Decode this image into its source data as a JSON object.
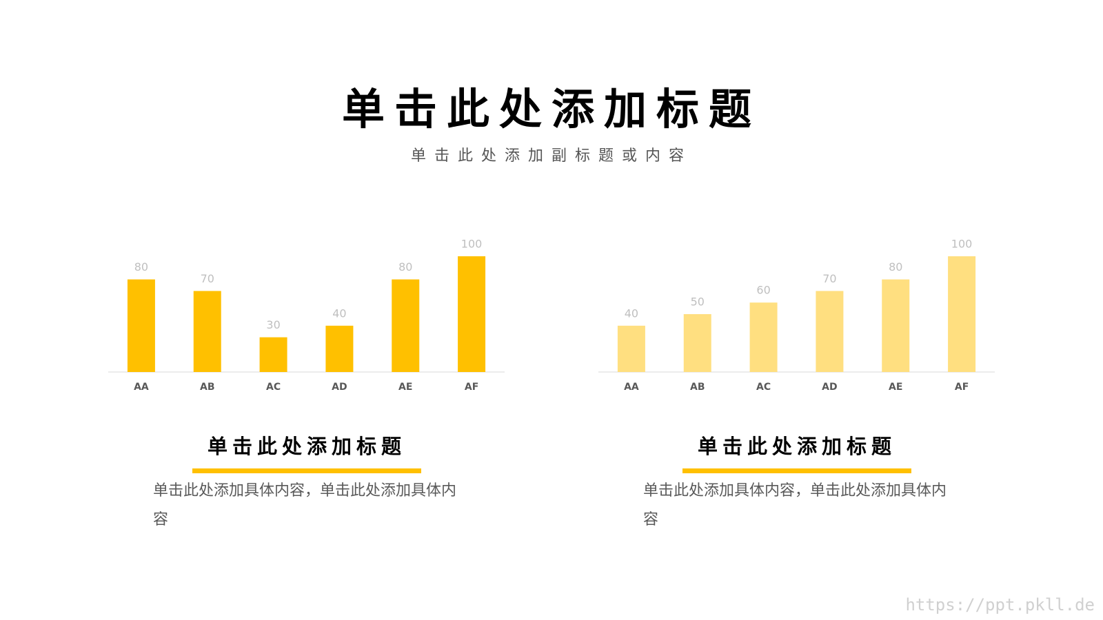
{
  "header": {
    "title": "单击此处添加标题",
    "subtitle": "单击此处添加副标题或内容"
  },
  "chart_data": [
    {
      "type": "bar",
      "categories": [
        "AA",
        "AB",
        "AC",
        "AD",
        "AE",
        "AF"
      ],
      "values": [
        80,
        70,
        30,
        40,
        80,
        100
      ],
      "color": "#FFC000",
      "ylim": [
        0,
        100
      ]
    },
    {
      "type": "bar",
      "categories": [
        "AA",
        "AB",
        "AC",
        "AD",
        "AE",
        "AF"
      ],
      "values": [
        40,
        50,
        60,
        70,
        80,
        100
      ],
      "color": "#FFDF80",
      "ylim": [
        0,
        100
      ]
    }
  ],
  "panels": [
    {
      "title": "单击此处添加标题",
      "text": "单击此处添加具体内容，单击此处添加具体内容"
    },
    {
      "title": "单击此处添加标题",
      "text": "单击此处添加具体内容，单击此处添加具体内容"
    }
  ],
  "watermark": "https://ppt.pkll.de"
}
